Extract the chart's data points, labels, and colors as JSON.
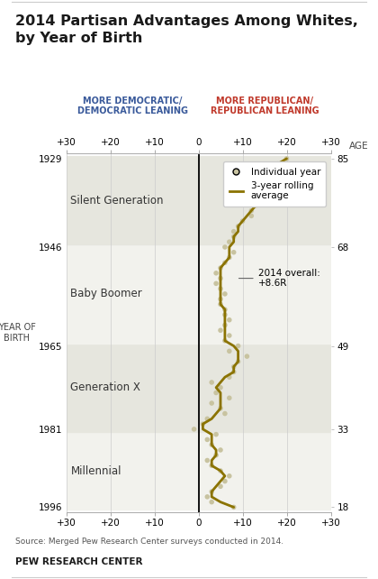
{
  "title_line1": "2014 Partisan Advantages Among Whites,",
  "title_line2": "by Year of Birth",
  "left_label_line1": "MORE DEMOCRATIC/",
  "left_label_line2": "DEMOCRATIC LEANING",
  "right_label_line1": "MORE REPUBLICAN/",
  "right_label_line2": "REPUBLICAN LEANING",
  "ylabel_line1": "YEAR OF",
  "ylabel_line2": "BIRTH",
  "age_label": "AGE",
  "source": "Source: Merged Pew Research Center surveys conducted in 2014.",
  "footer": "PEW RESEARCH CENTER",
  "xlim": [
    -30,
    30
  ],
  "xticks": [
    -30,
    -20,
    -10,
    0,
    10,
    20,
    30
  ],
  "xtick_labels": [
    "+30",
    "+20",
    "+10",
    "0",
    "+10",
    "+20",
    "+30"
  ],
  "generation_bands": [
    {
      "name": "Millennial",
      "ymin": 1982,
      "ymax": 1996,
      "color": "#f2f2ed"
    },
    {
      "name": "Generation X",
      "ymin": 1965,
      "ymax": 1981,
      "color": "#e6e6de"
    },
    {
      "name": "Baby Boomer",
      "ymin": 1946,
      "ymax": 1964,
      "color": "#f2f2ed"
    },
    {
      "name": "Silent Generation",
      "ymin": 1929,
      "ymax": 1945,
      "color": "#e6e6de"
    }
  ],
  "yticks": [
    1996,
    1981,
    1965,
    1946,
    1929
  ],
  "ytick_labels": [
    "1996",
    "1981",
    "1965",
    "1946",
    "1929"
  ],
  "ytick_ages": [
    "18",
    "33",
    "49",
    "68",
    "85"
  ],
  "line_color": "#8B7300",
  "dot_color": "#c8c3a0",
  "birth_years": [
    1996,
    1995,
    1994,
    1993,
    1992,
    1991,
    1990,
    1989,
    1988,
    1987,
    1986,
    1985,
    1984,
    1983,
    1982,
    1981,
    1980,
    1979,
    1978,
    1977,
    1976,
    1975,
    1974,
    1973,
    1972,
    1971,
    1970,
    1969,
    1968,
    1967,
    1966,
    1965,
    1964,
    1963,
    1962,
    1961,
    1960,
    1959,
    1958,
    1957,
    1956,
    1955,
    1954,
    1953,
    1952,
    1951,
    1950,
    1949,
    1948,
    1947,
    1946,
    1945,
    1944,
    1943,
    1942,
    1941,
    1940,
    1939,
    1938,
    1937,
    1936,
    1935,
    1934,
    1933,
    1932,
    1931,
    1930,
    1929
  ],
  "individual_values": [
    8,
    3,
    2,
    3,
    5,
    6,
    7,
    5,
    3,
    2,
    4,
    5,
    3,
    2,
    4,
    -1,
    1,
    2,
    6,
    5,
    3,
    7,
    4,
    5,
    3,
    7,
    8,
    8,
    9,
    11,
    7,
    9,
    6,
    7,
    5,
    6,
    7,
    6,
    6,
    5,
    5,
    6,
    5,
    4,
    5,
    4,
    5,
    6,
    7,
    8,
    6,
    7,
    8,
    8,
    9,
    10,
    12,
    12,
    13,
    14,
    13,
    14,
    14,
    16,
    15,
    16,
    18,
    20
  ],
  "rolling_values": [
    8,
    5,
    3,
    3,
    4,
    5,
    6,
    5,
    3,
    3,
    4,
    4,
    3,
    3,
    3,
    1,
    1,
    3,
    4,
    5,
    5,
    5,
    5,
    4,
    5,
    6,
    8,
    8,
    9,
    9,
    9,
    8,
    6,
    6,
    6,
    6,
    6,
    6,
    6,
    5,
    5,
    5,
    5,
    5,
    5,
    5,
    5,
    6,
    7,
    7,
    7,
    8,
    8,
    9,
    9,
    10,
    11,
    12,
    13,
    14,
    14,
    14,
    15,
    15,
    16,
    17,
    18,
    20
  ]
}
